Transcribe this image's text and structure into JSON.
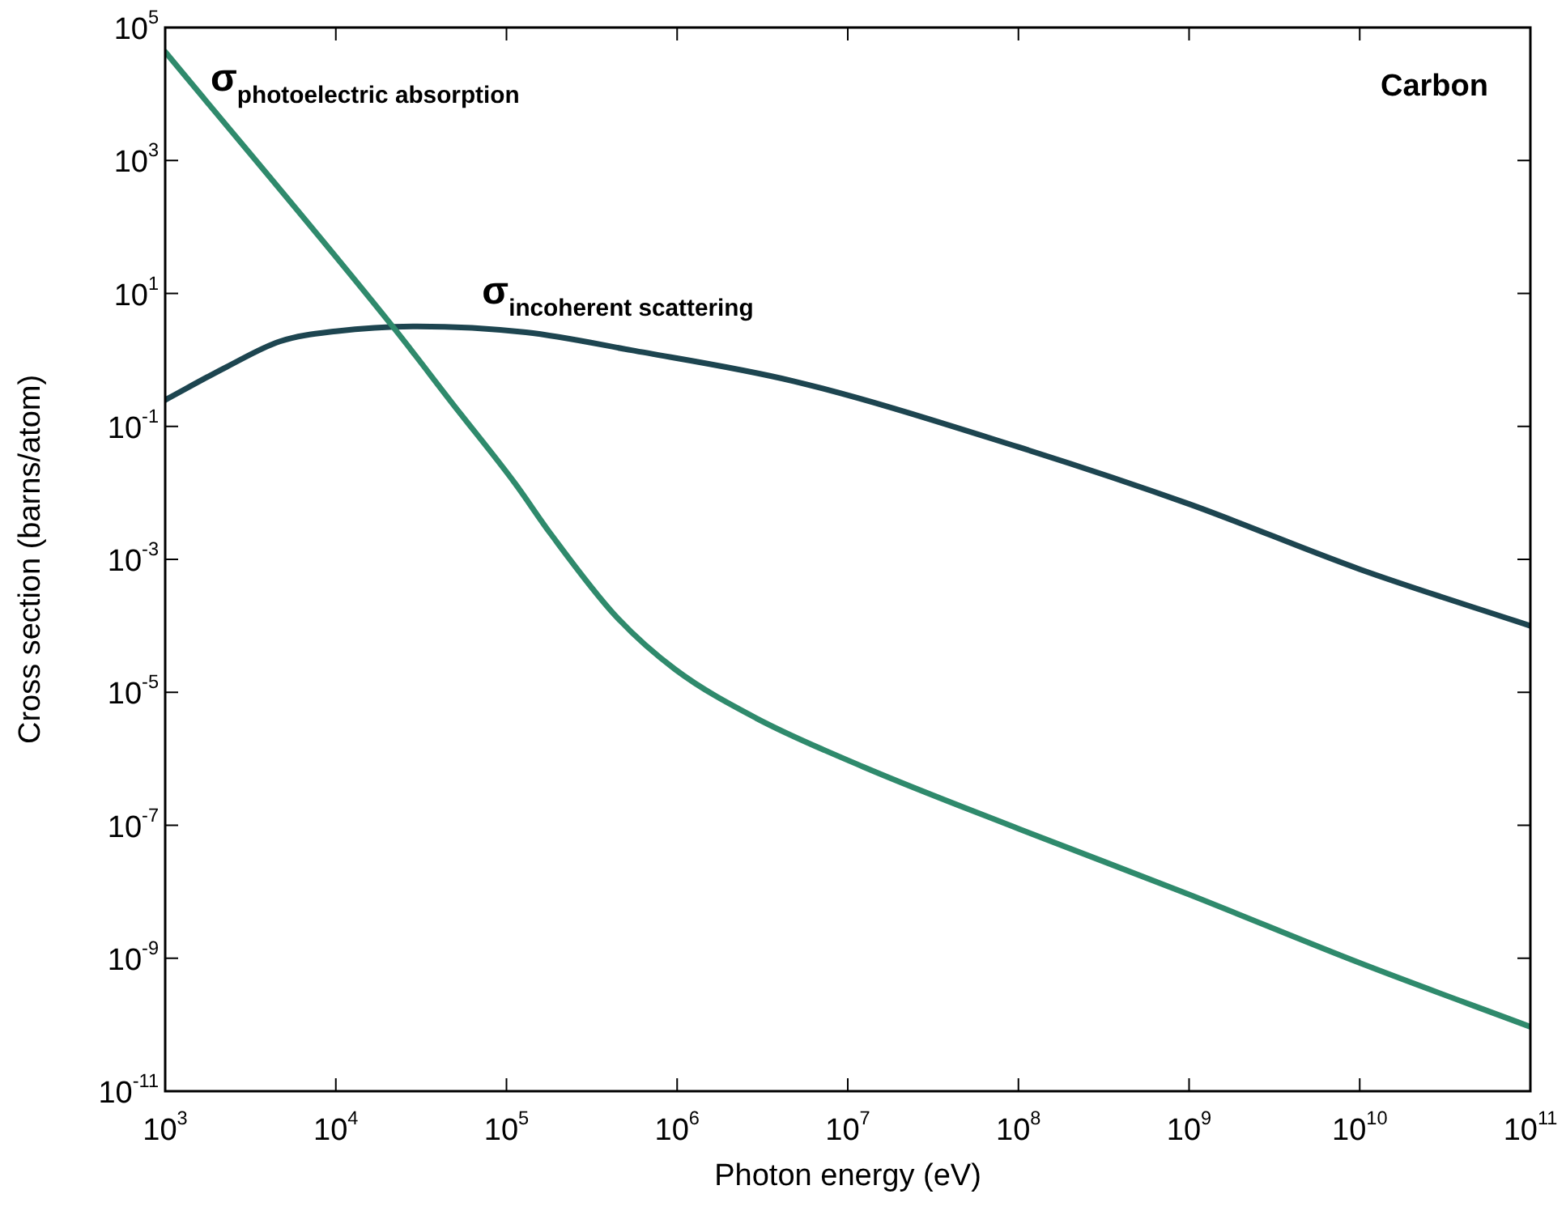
{
  "chart_data": {
    "type": "line",
    "xlabel": "Photon energy (eV)",
    "ylabel": "Cross section (barns/atom)",
    "log": "xy",
    "xlim": [
      1000,
      100000000000
    ],
    "ylim": [
      1e-11,
      100000
    ],
    "xticks": [
      {
        "value": 1000,
        "label": "10$^{3}$"
      },
      {
        "value": 10000,
        "label": "10$^{4}$"
      },
      {
        "value": 100000,
        "label": "10$^{5}$"
      },
      {
        "value": 1000000,
        "label": "10$^{6}$"
      },
      {
        "value": 10000000,
        "label": "10$^{7}$"
      },
      {
        "value": 100000000,
        "label": "10$^{8}$"
      },
      {
        "value": 1000000000,
        "label": "10$^{9}$"
      },
      {
        "value": 10000000000,
        "label": "10$^{10}$"
      },
      {
        "value": 100000000000,
        "label": "10$^{11}$"
      }
    ],
    "yticks": [
      {
        "value": 1e-11,
        "label": "10$^{-11}$"
      },
      {
        "value": 1e-09,
        "label": "10$^{-9}$"
      },
      {
        "value": 1e-07,
        "label": "10$^{-7}$"
      },
      {
        "value": 1e-05,
        "label": "10$^{-5}$"
      },
      {
        "value": 0.001,
        "label": "10$^{-3}$"
      },
      {
        "value": 0.1,
        "label": "10$^{-1}$"
      },
      {
        "value": 10,
        "label": "10$^{1}$"
      },
      {
        "value": 1000,
        "label": "10$^{3}$"
      },
      {
        "value": 100000,
        "label": "10$^{5}$"
      }
    ],
    "grid": false,
    "legend": false,
    "marker": "none",
    "line_style": "solid",
    "annotations": [
      "Carbon"
    ],
    "series": [
      {
        "name": "σ$_{photoelectric absorption}$",
        "color": "#2f8a6c",
        "x": [
          1000,
          21500,
          49000,
          112000,
          182000,
          437000,
          977000,
          2900000,
          12300000,
          100000000,
          1000000000,
          10000000000,
          100000000000
        ],
        "values": [
          43000,
          3.2,
          0.21,
          0.014,
          0.0024,
          0.00014,
          2.2e-05,
          4.1e-06,
          7.6e-07,
          8.9e-08,
          9.1e-09,
          8.5e-10,
          9.3e-11
        ]
      },
      {
        "name": "σ$_{incoherent scattering}$",
        "color": "#1d4550",
        "x": [
          1000,
          2300,
          4700,
          10000,
          30000,
          130000,
          540000,
          4800000,
          100000000,
          1000000000,
          10000000000,
          100000000000
        ],
        "values": [
          0.25,
          0.79,
          1.9,
          2.7,
          3.2,
          2.6,
          1.4,
          0.48,
          0.049,
          0.0068,
          0.00071,
          0.0001
        ]
      }
    ]
  }
}
